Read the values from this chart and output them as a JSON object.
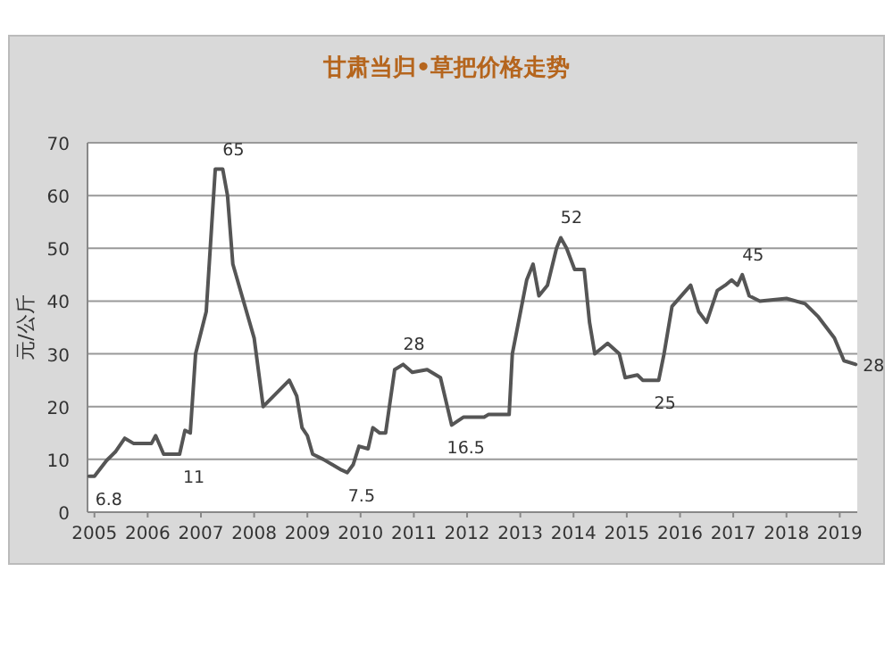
{
  "chart_data": {
    "type": "line",
    "title": "甘肃当归•草把价格走势",
    "ylabel": "元/公斤",
    "xlim": [
      2004.87,
      2019.33
    ],
    "ylim": [
      0,
      70
    ],
    "xticks": [
      2005,
      2006,
      2007,
      2008,
      2009,
      2010,
      2011,
      2012,
      2013,
      2014,
      2015,
      2016,
      2017,
      2018,
      2019
    ],
    "yticks": [
      0,
      10,
      20,
      30,
      40,
      50,
      60,
      70
    ],
    "grid": "y",
    "marker": "none",
    "line_style": "solid",
    "series": [
      {
        "color": "#555555",
        "x": [
          2004.9,
          2005.0,
          2005.23,
          2005.4,
          2005.57,
          2005.74,
          2006.07,
          2006.15,
          2006.3,
          2006.6,
          2006.7,
          2006.8,
          2006.9,
          2007.1,
          2007.27,
          2007.41,
          2007.5,
          2007.6,
          2008.0,
          2008.17,
          2008.66,
          2008.8,
          2008.9,
          2009.0,
          2009.1,
          2009.3,
          2009.47,
          2009.64,
          2009.75,
          2009.86,
          2009.97,
          2010.14,
          2010.23,
          2010.36,
          2010.47,
          2010.64,
          2010.8,
          2010.97,
          2011.25,
          2011.5,
          2011.71,
          2011.93,
          2012.32,
          2012.4,
          2012.79,
          2012.85,
          2013.12,
          2013.24,
          2013.35,
          2013.51,
          2013.68,
          2013.76,
          2013.87,
          2014.02,
          2014.2,
          2014.3,
          2014.4,
          2014.64,
          2014.86,
          2014.97,
          2015.2,
          2015.3,
          2015.6,
          2015.7,
          2015.85,
          2016.2,
          2016.35,
          2016.5,
          2016.7,
          2016.85,
          2016.97,
          2017.08,
          2017.17,
          2017.3,
          2017.5,
          2018.0,
          2018.35,
          2018.6,
          2018.9,
          2019.08,
          2019.3
        ],
        "values": [
          6.8,
          6.8,
          9.8,
          11.5,
          14,
          13,
          13,
          14.5,
          11,
          11,
          15.5,
          15,
          30,
          38,
          65,
          65,
          60,
          47,
          33,
          20,
          25,
          22,
          16,
          14.5,
          11,
          10,
          9,
          8,
          7.5,
          9,
          12.5,
          12,
          16,
          15,
          15,
          27,
          28,
          26.5,
          27,
          25.5,
          16.5,
          18,
          18,
          18.5,
          18.5,
          30,
          44,
          47,
          41,
          43,
          50,
          52,
          50,
          46,
          46,
          36,
          30,
          32,
          30,
          25.5,
          26,
          25,
          25,
          30,
          39,
          43,
          38,
          36,
          42,
          43,
          44,
          43,
          45,
          41,
          40,
          40.5,
          39.5,
          37,
          33,
          28.7,
          28
        ]
      }
    ],
    "annotations": [
      {
        "text": "6.8",
        "x": 2005.0,
        "y": 6.8
      },
      {
        "text": "11",
        "x": 2006.6,
        "y": 11
      },
      {
        "text": "65",
        "x": 2007.41,
        "y": 65
      },
      {
        "text": "7.5",
        "x": 2009.75,
        "y": 7.5
      },
      {
        "text": "28",
        "x": 2010.8,
        "y": 28
      },
      {
        "text": "16.5",
        "x": 2011.71,
        "y": 16.5
      },
      {
        "text": "52",
        "x": 2013.76,
        "y": 52
      },
      {
        "text": "25",
        "x": 2015.45,
        "y": 25
      },
      {
        "text": "45",
        "x": 2017.17,
        "y": 45
      },
      {
        "text": "28",
        "x": 2019.3,
        "y": 28
      }
    ]
  }
}
